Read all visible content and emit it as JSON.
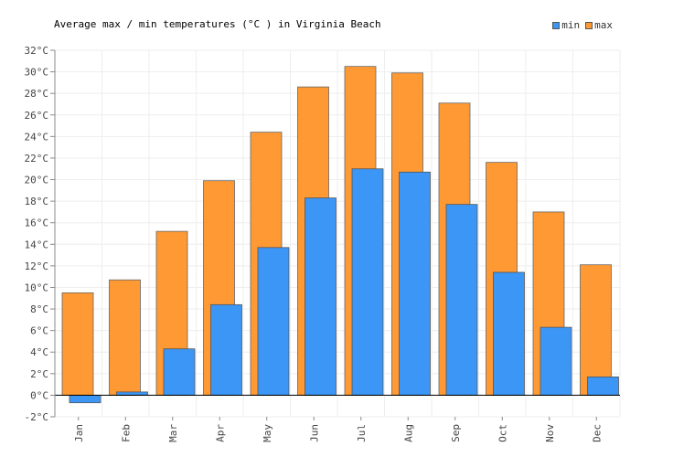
{
  "chart_data": {
    "type": "bar",
    "title": "Average max / min temperatures (°C ) in Virginia Beach",
    "categories": [
      "Jan",
      "Feb",
      "Mar",
      "Apr",
      "May",
      "Jun",
      "Jul",
      "Aug",
      "Sep",
      "Oct",
      "Nov",
      "Dec"
    ],
    "series": [
      {
        "name": "min",
        "color": "#3c96f5",
        "values": [
          -0.7,
          0.3,
          4.3,
          8.4,
          13.7,
          18.3,
          21.0,
          20.7,
          17.7,
          11.4,
          6.3,
          1.7
        ]
      },
      {
        "name": "max",
        "color": "#ff9933",
        "values": [
          9.5,
          10.7,
          15.2,
          19.9,
          24.4,
          28.6,
          30.5,
          29.9,
          27.1,
          21.6,
          17.0,
          12.1
        ]
      }
    ],
    "y_ticks": [
      "-2°C",
      "0°C",
      "2°C",
      "4°C",
      "6°C",
      "8°C",
      "10°C",
      "12°C",
      "14°C",
      "16°C",
      "18°C",
      "20°C",
      "22°C",
      "24°C",
      "26°C",
      "28°C",
      "30°C",
      "32°C"
    ],
    "ylim": [
      -2,
      32
    ],
    "grid": true,
    "legend_position": "top-right"
  }
}
